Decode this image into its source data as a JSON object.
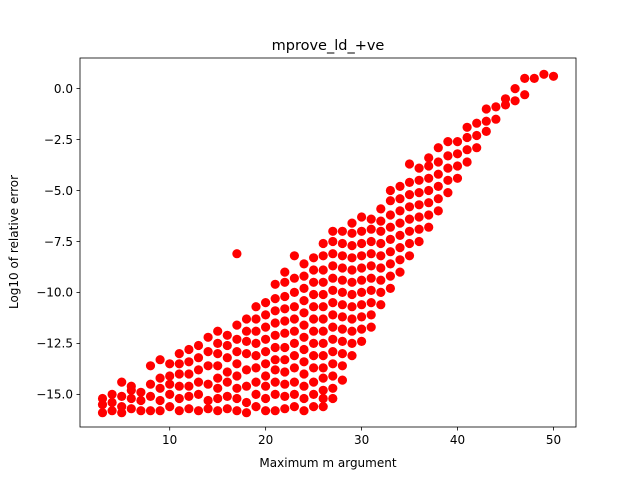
{
  "chart_data": {
    "type": "scatter",
    "title": "mprove_ld_+ve",
    "xlabel": "Maximum m argument",
    "ylabel": "Log10 of relative error",
    "xlim": [
      0.65,
      52.35
    ],
    "ylim": [
      -16.6,
      1.5
    ],
    "xticks": [
      10,
      20,
      30,
      40,
      50
    ],
    "xtick_labels": [
      "10",
      "20",
      "30",
      "40",
      "50"
    ],
    "yticks": [
      0.0,
      -2.5,
      -5.0,
      -7.5,
      -10.0,
      -12.5,
      -15.0
    ],
    "ytick_labels": [
      "0.0",
      "−2.5",
      "−5.0",
      "−7.5",
      "−10.0",
      "−12.5",
      "−15.0"
    ],
    "grid": false,
    "marker_color": "#ff0000",
    "points": [
      [
        3,
        -15.9
      ],
      [
        3,
        -15.5
      ],
      [
        3,
        -15.2
      ],
      [
        4,
        -15.8
      ],
      [
        4,
        -15.4
      ],
      [
        4,
        -15.0
      ],
      [
        5,
        -15.9
      ],
      [
        5,
        -15.6
      ],
      [
        5,
        -15.1
      ],
      [
        5,
        -14.4
      ],
      [
        6,
        -15.7
      ],
      [
        6,
        -15.2
      ],
      [
        6,
        -14.8
      ],
      [
        6,
        -14.6
      ],
      [
        7,
        -15.8
      ],
      [
        7,
        -15.3
      ],
      [
        7,
        -14.9
      ],
      [
        8,
        -15.8
      ],
      [
        8,
        -15.1
      ],
      [
        8,
        -14.5
      ],
      [
        8,
        -13.6
      ],
      [
        9,
        -15.8
      ],
      [
        9,
        -15.3
      ],
      [
        9,
        -14.7
      ],
      [
        9,
        -14.2
      ],
      [
        9,
        -13.3
      ],
      [
        10,
        -15.6
      ],
      [
        10,
        -15.0
      ],
      [
        10,
        -14.5
      ],
      [
        10,
        -14.1
      ],
      [
        10,
        -13.5
      ],
      [
        11,
        -15.8
      ],
      [
        11,
        -15.2
      ],
      [
        11,
        -14.6
      ],
      [
        11,
        -14.0
      ],
      [
        11,
        -13.5
      ],
      [
        11,
        -13.0
      ],
      [
        12,
        -15.7
      ],
      [
        12,
        -15.1
      ],
      [
        12,
        -14.6
      ],
      [
        12,
        -14.0
      ],
      [
        12,
        -13.4
      ],
      [
        12,
        -12.8
      ],
      [
        13,
        -15.8
      ],
      [
        13,
        -15.0
      ],
      [
        13,
        -14.4
      ],
      [
        13,
        -13.8
      ],
      [
        13,
        -13.2
      ],
      [
        13,
        -12.6
      ],
      [
        14,
        -15.7
      ],
      [
        14,
        -15.3
      ],
      [
        14,
        -14.5
      ],
      [
        14,
        -13.6
      ],
      [
        14,
        -12.9
      ],
      [
        14,
        -12.2
      ],
      [
        15,
        -15.8
      ],
      [
        15,
        -15.2
      ],
      [
        15,
        -14.7
      ],
      [
        15,
        -14.2
      ],
      [
        15,
        -13.6
      ],
      [
        15,
        -13.0
      ],
      [
        15,
        -12.5
      ],
      [
        15,
        -11.9
      ],
      [
        16,
        -15.7
      ],
      [
        16,
        -15.1
      ],
      [
        16,
        -14.4
      ],
      [
        16,
        -13.9
      ],
      [
        16,
        -13.2
      ],
      [
        16,
        -12.6
      ],
      [
        16,
        -12.1
      ],
      [
        17,
        -15.8
      ],
      [
        17,
        -15.2
      ],
      [
        17,
        -14.7
      ],
      [
        17,
        -14.1
      ],
      [
        17,
        -13.5
      ],
      [
        17,
        -12.9
      ],
      [
        17,
        -12.3
      ],
      [
        17,
        -11.6
      ],
      [
        17,
        -8.1
      ],
      [
        18,
        -15.9
      ],
      [
        18,
        -15.4
      ],
      [
        18,
        -14.6
      ],
      [
        18,
        -13.8
      ],
      [
        18,
        -13.0
      ],
      [
        18,
        -12.4
      ],
      [
        18,
        -11.9
      ],
      [
        18,
        -11.3
      ],
      [
        19,
        -15.6
      ],
      [
        19,
        -15.0
      ],
      [
        19,
        -14.4
      ],
      [
        19,
        -13.7
      ],
      [
        19,
        -13.1
      ],
      [
        19,
        -12.5
      ],
      [
        19,
        -11.9
      ],
      [
        19,
        -11.3
      ],
      [
        19,
        -10.7
      ],
      [
        20,
        -15.8
      ],
      [
        20,
        -15.2
      ],
      [
        20,
        -14.6
      ],
      [
        20,
        -14.1
      ],
      [
        20,
        -13.5
      ],
      [
        20,
        -12.9
      ],
      [
        20,
        -12.3
      ],
      [
        20,
        -11.7
      ],
      [
        20,
        -11.1
      ],
      [
        20,
        -10.5
      ],
      [
        21,
        -15.8
      ],
      [
        21,
        -15.0
      ],
      [
        21,
        -14.4
      ],
      [
        21,
        -13.8
      ],
      [
        21,
        -13.3
      ],
      [
        21,
        -12.7
      ],
      [
        21,
        -12.1
      ],
      [
        21,
        -11.5
      ],
      [
        21,
        -10.9
      ],
      [
        21,
        -10.3
      ],
      [
        21,
        -9.6
      ],
      [
        22,
        -15.7
      ],
      [
        22,
        -15.1
      ],
      [
        22,
        -14.5
      ],
      [
        22,
        -13.9
      ],
      [
        22,
        -13.3
      ],
      [
        22,
        -12.7
      ],
      [
        22,
        -12.0
      ],
      [
        22,
        -11.4
      ],
      [
        22,
        -10.8
      ],
      [
        22,
        -10.2
      ],
      [
        22,
        -9.5
      ],
      [
        22,
        -9.0
      ],
      [
        23,
        -15.6
      ],
      [
        23,
        -15.0
      ],
      [
        23,
        -14.4
      ],
      [
        23,
        -13.7
      ],
      [
        23,
        -13.1
      ],
      [
        23,
        -12.5
      ],
      [
        23,
        -11.9
      ],
      [
        23,
        -11.3
      ],
      [
        23,
        -10.7
      ],
      [
        23,
        -10.0
      ],
      [
        23,
        -9.3
      ],
      [
        23,
        -8.2
      ],
      [
        24,
        -15.8
      ],
      [
        24,
        -15.2
      ],
      [
        24,
        -14.6
      ],
      [
        24,
        -14.0
      ],
      [
        24,
        -13.4
      ],
      [
        24,
        -12.8
      ],
      [
        24,
        -12.2
      ],
      [
        24,
        -11.6
      ],
      [
        24,
        -11.0
      ],
      [
        24,
        -10.4
      ],
      [
        24,
        -9.8
      ],
      [
        24,
        -9.2
      ],
      [
        24,
        -8.6
      ],
      [
        25,
        -15.6
      ],
      [
        25,
        -15.0
      ],
      [
        25,
        -14.4
      ],
      [
        25,
        -13.7
      ],
      [
        25,
        -13.1
      ],
      [
        25,
        -12.5
      ],
      [
        25,
        -11.9
      ],
      [
        25,
        -11.3
      ],
      [
        25,
        -10.7
      ],
      [
        25,
        -10.1
      ],
      [
        25,
        -9.5
      ],
      [
        25,
        -8.9
      ],
      [
        25,
        -8.3
      ],
      [
        26,
        -15.6
      ],
      [
        26,
        -15.2
      ],
      [
        26,
        -14.8
      ],
      [
        26,
        -14.2
      ],
      [
        26,
        -13.7
      ],
      [
        26,
        -13.1
      ],
      [
        26,
        -12.5
      ],
      [
        26,
        -11.9
      ],
      [
        26,
        -11.3
      ],
      [
        26,
        -10.7
      ],
      [
        26,
        -10.1
      ],
      [
        26,
        -9.5
      ],
      [
        26,
        -8.9
      ],
      [
        26,
        -8.2
      ],
      [
        26,
        -7.6
      ],
      [
        27,
        -15.2
      ],
      [
        27,
        -14.7
      ],
      [
        27,
        -14.1
      ],
      [
        27,
        -13.5
      ],
      [
        27,
        -12.9
      ],
      [
        27,
        -12.3
      ],
      [
        27,
        -11.7
      ],
      [
        27,
        -11.1
      ],
      [
        27,
        -10.5
      ],
      [
        27,
        -9.9
      ],
      [
        27,
        -9.3
      ],
      [
        27,
        -8.7
      ],
      [
        27,
        -8.1
      ],
      [
        27,
        -7.5
      ],
      [
        27,
        -7.0
      ],
      [
        28,
        -14.3
      ],
      [
        28,
        -13.6
      ],
      [
        28,
        -13.0
      ],
      [
        28,
        -12.4
      ],
      [
        28,
        -11.8
      ],
      [
        28,
        -11.2
      ],
      [
        28,
        -10.6
      ],
      [
        28,
        -10.0
      ],
      [
        28,
        -9.4
      ],
      [
        28,
        -8.8
      ],
      [
        28,
        -8.2
      ],
      [
        28,
        -7.6
      ],
      [
        28,
        -7.0
      ],
      [
        29,
        -13.1
      ],
      [
        29,
        -12.5
      ],
      [
        29,
        -11.9
      ],
      [
        29,
        -11.3
      ],
      [
        29,
        -10.7
      ],
      [
        29,
        -10.1
      ],
      [
        29,
        -9.5
      ],
      [
        29,
        -8.9
      ],
      [
        29,
        -8.3
      ],
      [
        29,
        -7.7
      ],
      [
        29,
        -7.1
      ],
      [
        29,
        -6.6
      ],
      [
        30,
        -12.4
      ],
      [
        30,
        -11.8
      ],
      [
        30,
        -11.2
      ],
      [
        30,
        -10.6
      ],
      [
        30,
        -10.0
      ],
      [
        30,
        -9.4
      ],
      [
        30,
        -8.8
      ],
      [
        30,
        -8.2
      ],
      [
        30,
        -7.6
      ],
      [
        30,
        -7.0
      ],
      [
        30,
        -6.3
      ],
      [
        31,
        -11.7
      ],
      [
        31,
        -11.1
      ],
      [
        31,
        -10.5
      ],
      [
        31,
        -9.9
      ],
      [
        31,
        -9.3
      ],
      [
        31,
        -8.7
      ],
      [
        31,
        -8.1
      ],
      [
        31,
        -7.5
      ],
      [
        31,
        -6.9
      ],
      [
        31,
        -6.4
      ],
      [
        32,
        -10.6
      ],
      [
        32,
        -10.0
      ],
      [
        32,
        -9.4
      ],
      [
        32,
        -8.8
      ],
      [
        32,
        -8.2
      ],
      [
        32,
        -7.6
      ],
      [
        32,
        -7.0
      ],
      [
        32,
        -6.5
      ],
      [
        32,
        -5.9
      ],
      [
        33,
        -9.8
      ],
      [
        33,
        -9.2
      ],
      [
        33,
        -8.6
      ],
      [
        33,
        -8.0
      ],
      [
        33,
        -7.4
      ],
      [
        33,
        -6.8
      ],
      [
        33,
        -6.2
      ],
      [
        33,
        -5.5
      ],
      [
        33,
        -5.0
      ],
      [
        34,
        -9.0
      ],
      [
        34,
        -8.4
      ],
      [
        34,
        -7.8
      ],
      [
        34,
        -7.2
      ],
      [
        34,
        -6.6
      ],
      [
        34,
        -6.0
      ],
      [
        34,
        -5.4
      ],
      [
        34,
        -4.8
      ],
      [
        35,
        -8.2
      ],
      [
        35,
        -7.6
      ],
      [
        35,
        -7.0
      ],
      [
        35,
        -6.4
      ],
      [
        35,
        -5.8
      ],
      [
        35,
        -5.2
      ],
      [
        35,
        -4.6
      ],
      [
        35,
        -3.7
      ],
      [
        36,
        -7.5
      ],
      [
        36,
        -6.9
      ],
      [
        36,
        -6.3
      ],
      [
        36,
        -5.7
      ],
      [
        36,
        -5.1
      ],
      [
        36,
        -4.5
      ],
      [
        36,
        -3.9
      ],
      [
        37,
        -6.8
      ],
      [
        37,
        -6.2
      ],
      [
        37,
        -5.6
      ],
      [
        37,
        -5.0
      ],
      [
        37,
        -4.4
      ],
      [
        37,
        -3.8
      ],
      [
        37,
        -3.4
      ],
      [
        38,
        -6.0
      ],
      [
        38,
        -5.4
      ],
      [
        38,
        -4.8
      ],
      [
        38,
        -4.2
      ],
      [
        38,
        -3.6
      ],
      [
        38,
        -2.9
      ],
      [
        39,
        -5.1
      ],
      [
        39,
        -4.5
      ],
      [
        39,
        -3.9
      ],
      [
        39,
        -3.3
      ],
      [
        39,
        -2.6
      ],
      [
        40,
        -4.4
      ],
      [
        40,
        -3.8
      ],
      [
        40,
        -3.2
      ],
      [
        40,
        -2.6
      ],
      [
        41,
        -3.6
      ],
      [
        41,
        -3.0
      ],
      [
        41,
        -2.4
      ],
      [
        41,
        -1.9
      ],
      [
        42,
        -2.9
      ],
      [
        42,
        -2.3
      ],
      [
        42,
        -1.7
      ],
      [
        43,
        -2.1
      ],
      [
        43,
        -1.6
      ],
      [
        43,
        -1.0
      ],
      [
        44,
        -1.5
      ],
      [
        44,
        -0.9
      ],
      [
        45,
        -0.8
      ],
      [
        45,
        -0.5
      ],
      [
        46,
        0.0
      ],
      [
        46,
        -0.6
      ],
      [
        47,
        0.5
      ],
      [
        47,
        -0.3
      ],
      [
        48,
        0.5
      ],
      [
        49,
        0.7
      ],
      [
        50,
        0.6
      ]
    ]
  }
}
